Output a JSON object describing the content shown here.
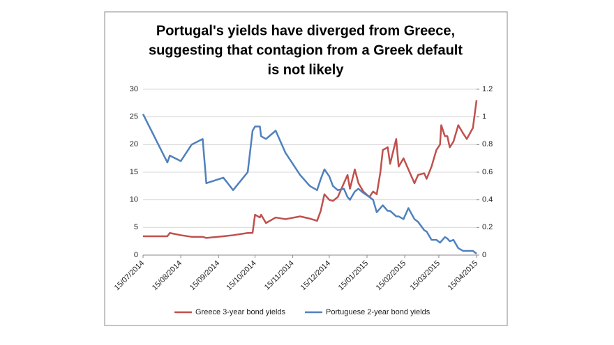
{
  "chart_data": {
    "type": "line",
    "title": [
      "Portugal's yields have diverged from Greece,",
      "suggesting that contagion from a Greek default",
      "is not likely"
    ],
    "x": [
      "15/07/2014",
      "04/08/2014",
      "06/08/2014",
      "15/08/2014",
      "24/08/2014",
      "02/09/2014",
      "05/09/2014",
      "19/09/2014",
      "27/09/2014",
      "09/10/2014",
      "13/10/2014",
      "15/10/2014",
      "19/10/2014",
      "20/10/2014",
      "24/10/2014",
      "01/11/2014",
      "09/11/2014",
      "21/11/2014",
      "29/11/2014",
      "05/12/2014",
      "08/12/2014",
      "11/12/2014",
      "15/12/2014",
      "18/12/2014",
      "22/12/2014",
      "27/12/2014",
      "30/12/2014",
      "01/01/2015",
      "05/01/2015",
      "08/01/2015",
      "12/01/2015",
      "17/01/2015",
      "20/01/2015",
      "23/01/2015",
      "26/01/2015",
      "28/01/2015",
      "01/02/2015",
      "03/02/2015",
      "08/02/2015",
      "10/02/2015",
      "14/02/2015",
      "18/02/2015",
      "23/02/2015",
      "26/02/2015",
      "03/03/2015",
      "05/03/2015",
      "09/03/2015",
      "13/03/2015",
      "16/03/2015",
      "17/03/2015",
      "20/03/2015",
      "22/03/2015",
      "24/03/2015",
      "27/03/2015",
      "31/03/2015",
      "04/04/2015",
      "07/04/2015",
      "12/04/2015",
      "15/04/2015"
    ],
    "series": [
      {
        "name": "Greece 3-year bond yields",
        "color": "#c0504d",
        "values": [
          3.4,
          3.4,
          4.0,
          3.6,
          3.3,
          3.3,
          3.1,
          3.4,
          3.6,
          4.0,
          4.0,
          7.3,
          6.8,
          7.3,
          5.8,
          6.8,
          6.5,
          7.0,
          6.6,
          6.2,
          8.0,
          11.0,
          10.0,
          9.8,
          10.5,
          13.0,
          14.5,
          12.0,
          15.5,
          13.0,
          11.5,
          10.5,
          11.5,
          11.0,
          15.0,
          19.0,
          19.5,
          16.5,
          21.0,
          16.0,
          17.5,
          15.5,
          13.0,
          14.5,
          14.8,
          13.8,
          16.0,
          19.0,
          20.0,
          23.5,
          21.5,
          21.5,
          19.5,
          20.5,
          23.5,
          22.0,
          21.0,
          23.0,
          28.0
        ]
      },
      {
        "name": "Portuguese 2-year bond yields",
        "color": "#4f81bd",
        "axis": "y2",
        "values": [
          1.02,
          0.67,
          0.72,
          0.68,
          0.8,
          0.84,
          0.52,
          0.56,
          0.47,
          0.6,
          0.9,
          0.93,
          0.93,
          0.86,
          0.84,
          0.9,
          0.74,
          0.58,
          0.5,
          0.47,
          0.55,
          0.62,
          0.57,
          0.5,
          0.47,
          0.48,
          0.42,
          0.4,
          0.46,
          0.48,
          0.45,
          0.42,
          0.4,
          0.31,
          0.34,
          0.36,
          0.32,
          0.32,
          0.28,
          0.28,
          0.26,
          0.34,
          0.26,
          0.24,
          0.18,
          0.17,
          0.11,
          0.11,
          0.09,
          0.1,
          0.13,
          0.12,
          0.1,
          0.11,
          0.05,
          0.03,
          0.03,
          0.03,
          0.01
        ]
      }
    ],
    "xlim": [
      "15/07/2014",
      "15/04/2015"
    ],
    "xticks": [
      "15/07/2014",
      "15/08/2014",
      "15/09/2014",
      "15/10/2014",
      "15/11/2014",
      "15/12/2014",
      "15/01/2015",
      "15/02/2015",
      "15/03/2015",
      "15/04/2015"
    ],
    "ylim": [
      0,
      30
    ],
    "yticks": [
      0,
      5,
      10,
      15,
      20,
      25,
      30
    ],
    "y2lim": [
      0,
      1.2
    ],
    "y2ticks": [
      0,
      0.2,
      0.4,
      0.6,
      0.8,
      1,
      1.2
    ],
    "grid": true,
    "legend": "bottom"
  }
}
